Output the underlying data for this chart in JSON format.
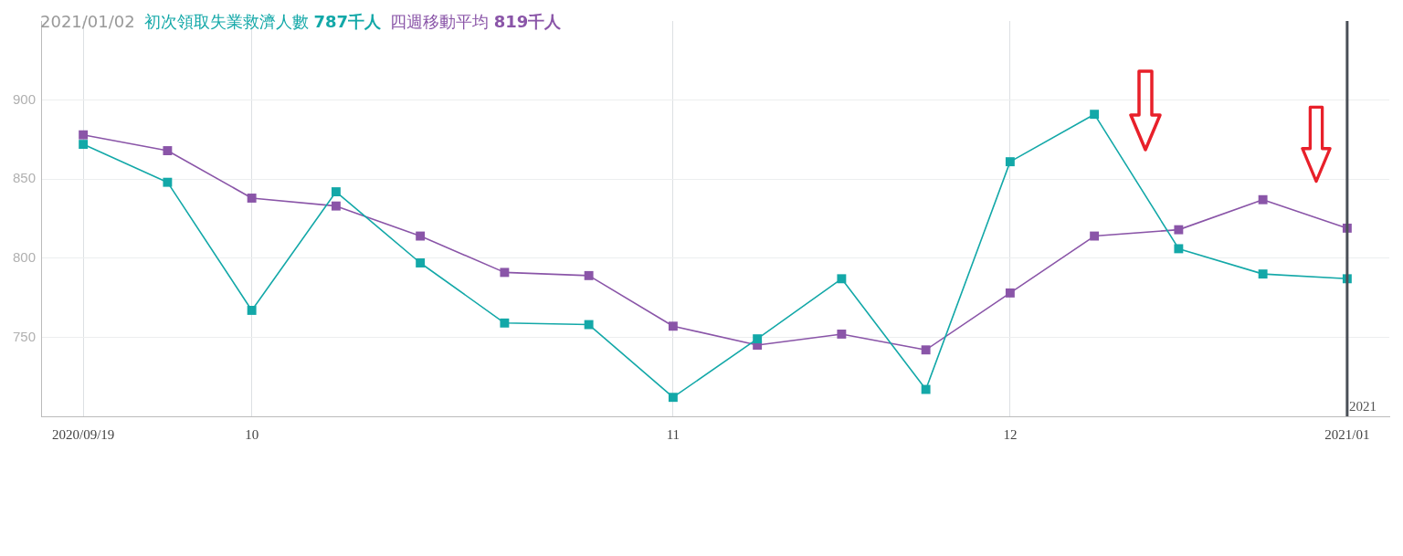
{
  "chart_data": {
    "type": "line",
    "title": "2021/01/02",
    "categories": [
      "2020/09/19",
      null,
      "10",
      null,
      null,
      null,
      null,
      "11",
      null,
      null,
      null,
      "12",
      null,
      null,
      null,
      "2021/01"
    ],
    "series": [
      {
        "name": "初次領取失業救濟人數",
        "color": "#13a8a8",
        "values": [
          872,
          848,
          767,
          842,
          797,
          759,
          758,
          712,
          749,
          787,
          717,
          861,
          891,
          806,
          790,
          787
        ]
      },
      {
        "name": "四週移動平均",
        "color": "#8a55a8",
        "values": [
          878,
          868,
          838,
          833,
          814,
          791,
          789,
          757,
          745,
          752,
          742,
          778,
          814,
          818,
          837,
          819
        ]
      }
    ],
    "annotations": [
      "787千人",
      "819千人"
    ],
    "ylim": [
      700,
      950
    ],
    "yticks": [
      750,
      800,
      850,
      900
    ],
    "grid": true,
    "legend": "top left",
    "marker": "square",
    "line_style": "solid",
    "ref_lines": [
      {
        "axis": "x",
        "value": "2021/01",
        "label": "2021",
        "color": "#4a4f57"
      }
    ]
  }
}
